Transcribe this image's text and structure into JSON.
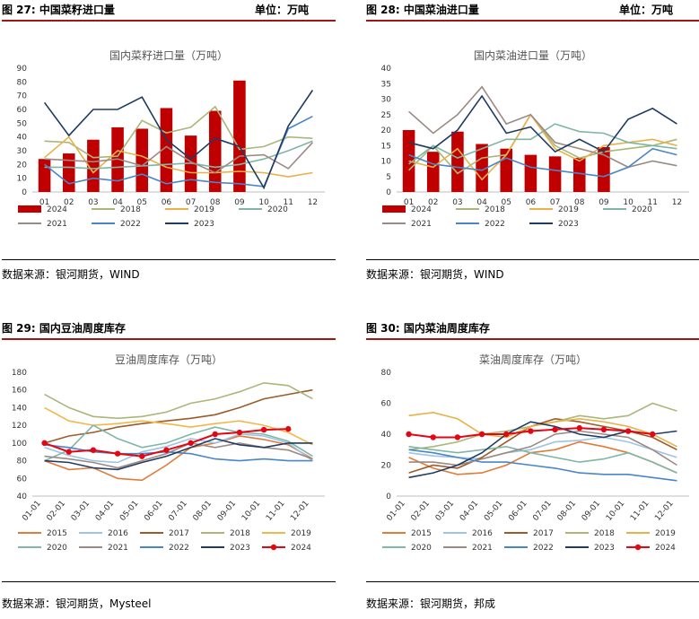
{
  "panels": [
    {
      "fig": "图 27:",
      "title": "中国菜籽进口量",
      "unit": "单位：万吨",
      "source": "数据来源：银河期货，WIND",
      "chart_data": {
        "type": "bar+line",
        "title": "国内菜籽进口量（万吨）",
        "categories": [
          "01",
          "02",
          "03",
          "04",
          "05",
          "06",
          "07",
          "08",
          "09",
          "10",
          "11",
          "12"
        ],
        "ylim": [
          0,
          90
        ],
        "yticks": [
          0,
          10,
          20,
          30,
          40,
          50,
          60,
          70,
          80,
          90
        ],
        "bar_series": {
          "name": "2024",
          "color": "#c00000",
          "values": [
            24,
            28,
            38,
            47,
            46,
            61,
            41,
            59,
            81,
            null,
            null,
            null
          ]
        },
        "series": [
          {
            "name": "2018",
            "color": "#a9b77a",
            "values": [
              37,
              36,
              25,
              26,
              52,
              43,
              47,
              62,
              31,
              33,
              40,
              39
            ]
          },
          {
            "name": "2019",
            "color": "#e8b24a",
            "values": [
              25,
              40,
              14,
              30,
              26,
              18,
              14,
              14,
              15,
              14,
              11,
              14
            ]
          },
          {
            "name": "2020",
            "color": "#7fb6a6",
            "values": [
              18,
              18,
              17,
              18,
              19,
              20,
              21,
              18,
              20,
              24,
              30,
              37
            ]
          },
          {
            "name": "2021",
            "color": "#9b8a84",
            "values": [
              24,
              23,
              22,
              24,
              19,
              33,
              22,
              14,
              26,
              27,
              17,
              36
            ]
          },
          {
            "name": "2022",
            "color": "#4a86c5",
            "values": [
              20,
              6,
              10,
              8,
              13,
              6,
              9,
              7,
              6,
              4,
              46,
              55
            ]
          },
          {
            "name": "2023",
            "color": "#1f3b63",
            "values": [
              65,
              41,
              60,
              60,
              69,
              38,
              24,
              39,
              33,
              3,
              48,
              74
            ]
          }
        ]
      }
    },
    {
      "fig": "图 28:",
      "title": "中国菜油进口量",
      "unit": "单位：万吨",
      "source": "数据来源：银河期货，WIND",
      "chart_data": {
        "type": "bar+line",
        "title": "国内菜油进口量（万吨）",
        "categories": [
          "01",
          "02",
          "03",
          "04",
          "05",
          "06",
          "07",
          "08",
          "09",
          "10",
          "11",
          "12"
        ],
        "ylim": [
          0,
          40
        ],
        "yticks": [
          0,
          5,
          10,
          15,
          20,
          25,
          30,
          35,
          40
        ],
        "bar_series": {
          "name": "2024",
          "color": "#c00000",
          "values": [
            20,
            13,
            19.5,
            15.5,
            14,
            12,
            11.5,
            11,
            14.5,
            null,
            null,
            null
          ]
        },
        "series": [
          {
            "name": "2018",
            "color": "#a9b77a",
            "values": [
              7,
              15,
              6,
              11,
              12,
              25,
              15,
              11,
              13,
              14,
              15,
              17
            ]
          },
          {
            "name": "2019",
            "color": "#e8b24a",
            "values": [
              10,
              8,
              14,
              4,
              12,
              25,
              14,
              10,
              15,
              16,
              17,
              15
            ]
          },
          {
            "name": "2020",
            "color": "#7fb6a6",
            "values": [
              9,
              15,
              11,
              14,
              17,
              17,
              22,
              19.5,
              19,
              16,
              15,
              14
            ]
          },
          {
            "name": "2021",
            "color": "#9b8a84",
            "values": [
              26,
              19,
              25,
              34,
              22,
              25,
              16,
              14,
              12,
              8,
              10,
              8.5
            ]
          },
          {
            "name": "2022",
            "color": "#4a86c5",
            "values": [
              12,
              9,
              8,
              7,
              11,
              8,
              7,
              6,
              5,
              8,
              14,
              12
            ]
          },
          {
            "name": "2023",
            "color": "#1f3b63",
            "values": [
              16,
              14,
              20,
              31,
              19,
              21,
              13,
              17,
              13,
              23.5,
              27,
              22
            ]
          }
        ]
      }
    },
    {
      "fig": "图 29:",
      "title": "国内豆油周度库存",
      "unit": "",
      "source": "数据来源：银河期货，Mysteel",
      "chart_data": {
        "type": "line",
        "title": "豆油周度库存（万吨）",
        "categories": [
          "01-01",
          "02-01",
          "03-01",
          "04-01",
          "05-01",
          "06-01",
          "07-01",
          "08-01",
          "09-01",
          "10-01",
          "11-01",
          "12-01"
        ],
        "ylim": [
          40,
          180
        ],
        "yticks": [
          40,
          60,
          80,
          100,
          120,
          140,
          160,
          180
        ],
        "series": [
          {
            "name": "2015",
            "color": "#e07b39",
            "values": [
              80,
              70,
              72,
              60,
              58,
              75,
              95,
              100,
              108,
              104,
              98,
              82
            ]
          },
          {
            "name": "2016",
            "color": "#9dc3e6",
            "values": [
              95,
              86,
              80,
              78,
              90,
              96,
              105,
              100,
              110,
              108,
              100,
              80
            ]
          },
          {
            "name": "2017",
            "color": "#9c5b2a",
            "values": [
              100,
              108,
              112,
              118,
              122,
              125,
              128,
              132,
              140,
              150,
              155,
              160
            ]
          },
          {
            "name": "2018",
            "color": "#a9b77a",
            "values": [
              155,
              140,
              130,
              128,
              130,
              135,
              145,
              150,
              158,
              168,
              165,
              150
            ]
          },
          {
            "name": "2019",
            "color": "#f2b74a",
            "values": [
              140,
              125,
              120,
              122,
              125,
              122,
              118,
              122,
              125,
              120,
              112,
              98
            ]
          },
          {
            "name": "2020",
            "color": "#7fb6a6",
            "values": [
              80,
              92,
              120,
              105,
              95,
              100,
              110,
              118,
              112,
              110,
              102,
              85
            ]
          },
          {
            "name": "2021",
            "color": "#9b8a84",
            "values": [
              85,
              82,
              78,
              72,
              80,
              88,
              100,
              95,
              100,
              95,
              92,
              82
            ]
          },
          {
            "name": "2022",
            "color": "#4a86c5",
            "values": [
              98,
              95,
              90,
              88,
              88,
              90,
              88,
              82,
              80,
              82,
              80,
              80
            ]
          },
          {
            "name": "2023",
            "color": "#1f3b63",
            "values": [
              80,
              78,
              72,
              70,
              78,
              85,
              95,
              105,
              98,
              95,
              100,
              100
            ]
          },
          {
            "name": "2024",
            "color": "#e30613",
            "values": [
              100,
              90,
              92,
              88,
              85,
              92,
              100,
              110,
              112,
              115,
              116,
              null
            ]
          }
        ]
      }
    },
    {
      "fig": "图 30:",
      "title": "国内菜油周度库存",
      "unit": "",
      "source": "数据来源：银河期货，邦成",
      "chart_data": {
        "type": "line",
        "title": "菜油周度库存（万吨）",
        "categories": [
          "01-01",
          "02-01",
          "03-01",
          "04-01",
          "05-01",
          "06-01",
          "07-01",
          "08-01",
          "09-01",
          "10-01",
          "11-01",
          "12-01"
        ],
        "ylim": [
          0,
          80
        ],
        "yticks": [
          0,
          20,
          40,
          60,
          80
        ],
        "series": [
          {
            "name": "2015",
            "color": "#e07b39",
            "values": [
              25,
              18,
              14,
              15,
              20,
              28,
              30,
              35,
              32,
              28,
              22,
              15
            ]
          },
          {
            "name": "2016",
            "color": "#9dc3e6",
            "values": [
              28,
              26,
              25,
              24,
              28,
              30,
              35,
              36,
              38,
              35,
              30,
              25
            ]
          },
          {
            "name": "2017",
            "color": "#9c5b2a",
            "values": [
              15,
              20,
              18,
              25,
              35,
              45,
              50,
              48,
              45,
              42,
              38,
              30
            ]
          },
          {
            "name": "2018",
            "color": "#a9b77a",
            "values": [
              30,
              32,
              35,
              40,
              42,
              45,
              48,
              52,
              50,
              52,
              60,
              55
            ]
          },
          {
            "name": "2019",
            "color": "#e8b24a",
            "values": [
              52,
              54,
              50,
              40,
              38,
              45,
              48,
              50,
              48,
              45,
              40,
              32
            ]
          },
          {
            "name": "2020",
            "color": "#7fb6a6",
            "values": [
              32,
              30,
              28,
              30,
              32,
              28,
              25,
              22,
              24,
              28,
              22,
              15
            ]
          },
          {
            "name": "2021",
            "color": "#9b8a84",
            "values": [
              22,
              22,
              20,
              24,
              28,
              32,
              40,
              42,
              40,
              38,
              30,
              20
            ]
          },
          {
            "name": "2022",
            "color": "#4a86c5",
            "values": [
              30,
              28,
              25,
              22,
              22,
              20,
              18,
              15,
              14,
              14,
              12,
              10
            ]
          },
          {
            "name": "2023",
            "color": "#1f3b63",
            "values": [
              12,
              15,
              20,
              28,
              40,
              48,
              45,
              40,
              38,
              42,
              40,
              42
            ]
          },
          {
            "name": "2024",
            "color": "#e30613",
            "values": [
              40,
              38,
              38,
              40,
              40,
              42,
              43,
              44,
              43,
              42,
              40,
              null
            ]
          }
        ]
      }
    }
  ]
}
